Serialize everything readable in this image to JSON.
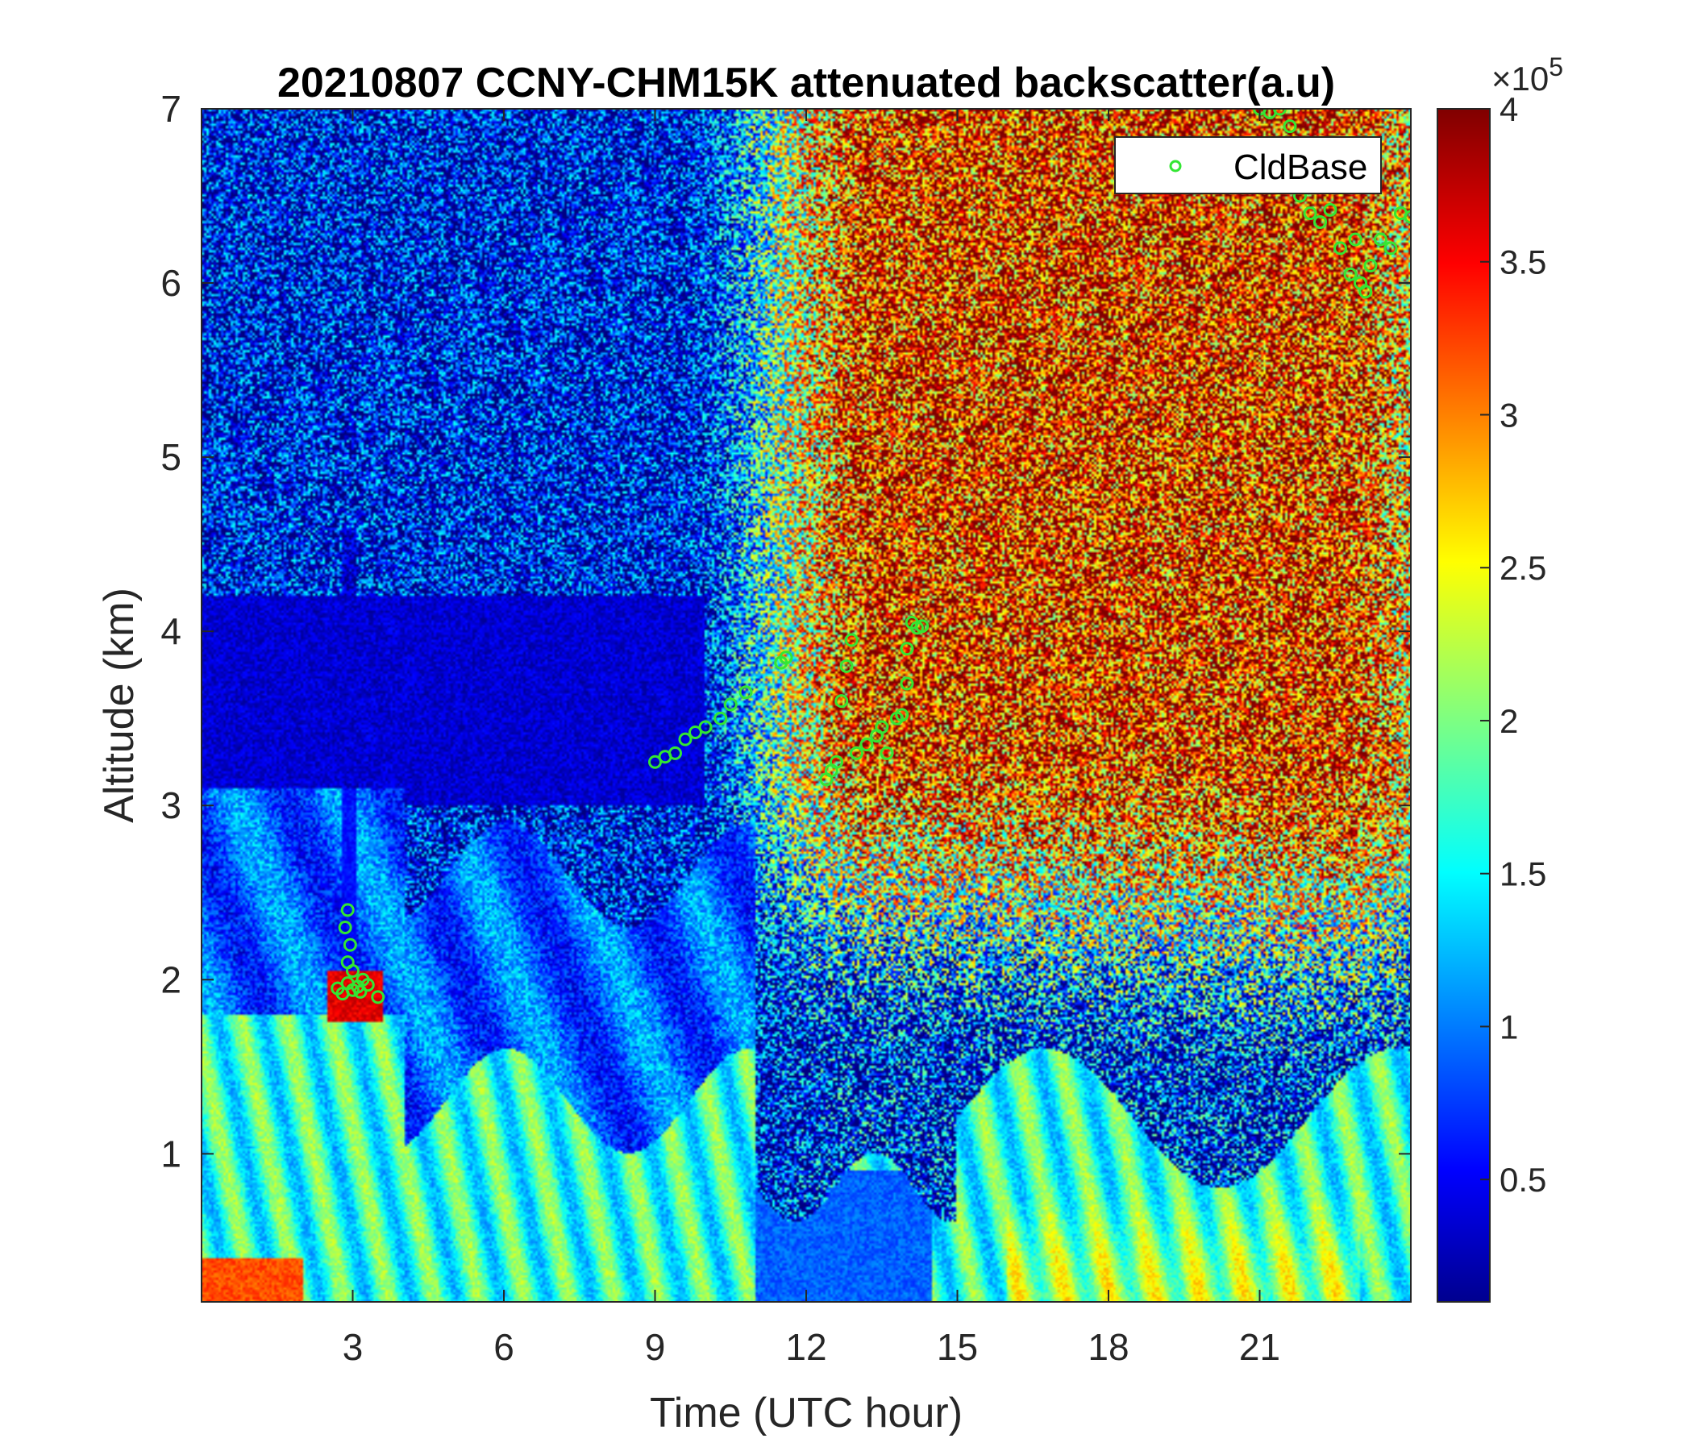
{
  "chart_data": {
    "type": "heatmap",
    "title": "20210807 CCNY-CHM15K attenuated backscatter(a.u)",
    "xlabel": "Time (UTC hour)",
    "ylabel": "Altitude (km)",
    "xlim": [
      0,
      24
    ],
    "ylim": [
      0.15,
      7
    ],
    "xticks": [
      3,
      6,
      9,
      12,
      15,
      18,
      21
    ],
    "yticks": [
      1,
      2,
      3,
      4,
      5,
      6,
      7
    ],
    "colorbar": {
      "colormap": "jet",
      "range": [
        0.1,
        4
      ],
      "ticks": [
        0.5,
        1,
        1.5,
        2,
        2.5,
        3,
        3.5,
        4
      ],
      "tick_labels": [
        "0.5",
        "1",
        "1.5",
        "2",
        "2.5",
        "3",
        "3.5",
        "4"
      ],
      "exponent_base": "×10",
      "exponent": "5"
    },
    "legend": {
      "position": "top-right",
      "entries": [
        "CldBase"
      ]
    },
    "series": [
      {
        "name": "CldBase",
        "marker": "circle",
        "color": "#33e633",
        "points": [
          [
            2.7,
            1.95
          ],
          [
            2.8,
            1.92
          ],
          [
            2.9,
            1.98
          ],
          [
            3.0,
            1.94
          ],
          [
            3.1,
            1.96
          ],
          [
            2.9,
            2.1
          ],
          [
            3.0,
            2.05
          ],
          [
            2.85,
            2.3
          ],
          [
            2.9,
            2.4
          ],
          [
            3.2,
            2.0
          ],
          [
            3.3,
            1.97
          ],
          [
            3.5,
            1.9
          ],
          [
            2.95,
            2.2
          ],
          [
            3.15,
            1.93
          ],
          [
            9.0,
            3.25
          ],
          [
            9.2,
            3.28
          ],
          [
            9.4,
            3.3
          ],
          [
            9.6,
            3.38
          ],
          [
            9.8,
            3.42
          ],
          [
            10.0,
            3.45
          ],
          [
            10.3,
            3.5
          ],
          [
            10.5,
            3.58
          ],
          [
            10.8,
            3.65
          ],
          [
            11.5,
            3.82
          ],
          [
            11.6,
            3.85
          ],
          [
            12.4,
            3.15
          ],
          [
            12.5,
            3.2
          ],
          [
            12.6,
            3.25
          ],
          [
            12.7,
            3.6
          ],
          [
            12.8,
            3.8
          ],
          [
            12.9,
            3.95
          ],
          [
            13.0,
            3.3
          ],
          [
            13.2,
            3.35
          ],
          [
            13.4,
            3.4
          ],
          [
            13.5,
            3.45
          ],
          [
            13.6,
            3.3
          ],
          [
            13.8,
            3.5
          ],
          [
            13.9,
            3.52
          ],
          [
            14.0,
            3.9
          ],
          [
            14.1,
            4.05
          ],
          [
            14.2,
            4.02
          ],
          [
            14.3,
            4.03
          ],
          [
            14.0,
            3.7
          ],
          [
            21.0,
            7.0
          ],
          [
            21.2,
            6.98
          ],
          [
            21.4,
            7.0
          ],
          [
            21.6,
            6.9
          ],
          [
            21.8,
            6.5
          ],
          [
            22.0,
            6.4
          ],
          [
            22.2,
            6.35
          ],
          [
            22.4,
            6.42
          ],
          [
            22.6,
            6.2
          ],
          [
            22.8,
            6.05
          ],
          [
            23.0,
            6.0
          ],
          [
            23.2,
            6.1
          ],
          [
            23.4,
            6.25
          ],
          [
            23.6,
            6.2
          ],
          [
            23.8,
            6.4
          ],
          [
            24.0,
            6.38
          ],
          [
            23.1,
            5.95
          ],
          [
            22.9,
            6.25
          ]
        ]
      }
    ]
  }
}
